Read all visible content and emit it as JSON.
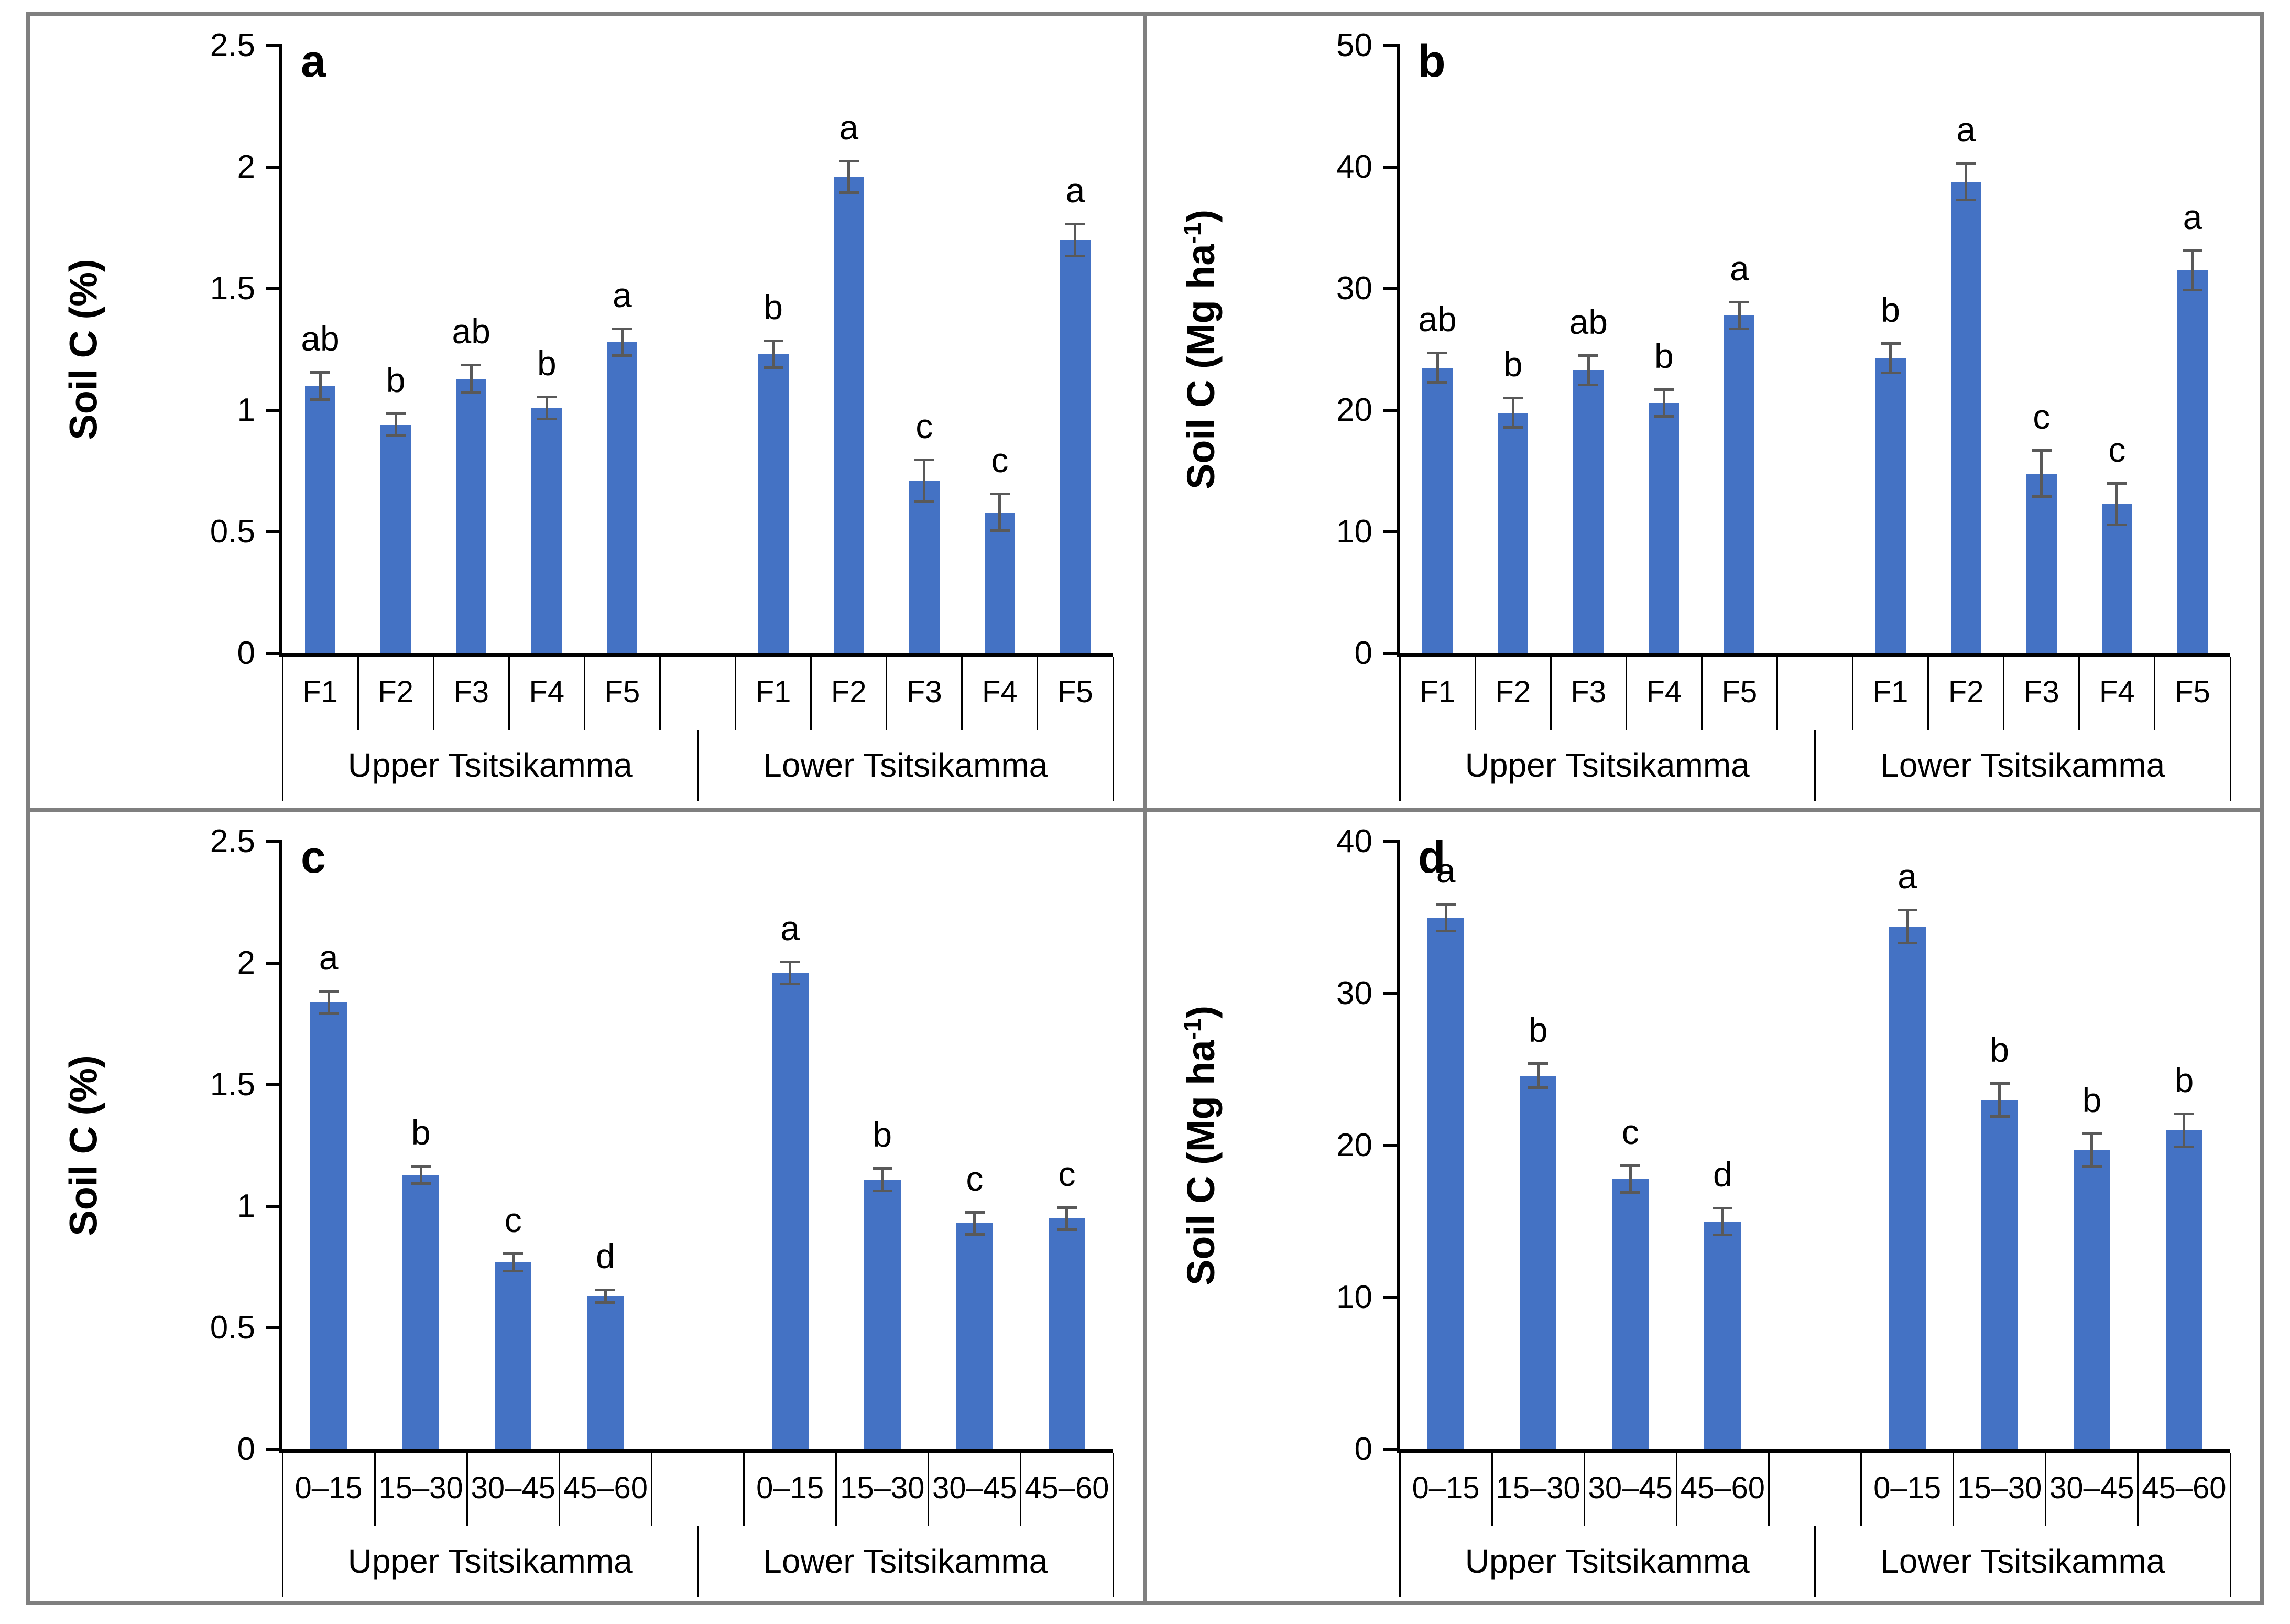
{
  "style": {
    "bar_color": "#4472C4",
    "error_bar_color": "#595959",
    "axis_color": "#000000",
    "table_line_color": "#000000",
    "frame_color": "#7f7f7f",
    "background": "#ffffff"
  },
  "chart_data": [
    {
      "id": "a",
      "type": "bar",
      "panel_letter": "a",
      "ylabel_pre": "Soil C (%)",
      "ylabel_sup": "",
      "ylabel_post": "",
      "ylim": [
        0,
        2.5
      ],
      "yticks": [
        0,
        0.5,
        1,
        1.5,
        2,
        2.5
      ],
      "ytick_labels": [
        "0",
        "0.5",
        "1",
        "1.5",
        "2",
        "2.5"
      ],
      "grid": false,
      "legend": "none",
      "groups": [
        {
          "label": "Upper Tsitsikamma",
          "categories": [
            "F1",
            "F2",
            "F3",
            "F4",
            "F5"
          ],
          "values": [
            1.1,
            0.94,
            1.13,
            1.01,
            1.28
          ],
          "errors": [
            0.05,
            0.04,
            0.05,
            0.04,
            0.05
          ],
          "sig_letters": [
            "ab",
            "b",
            "ab",
            "b",
            "a"
          ]
        },
        {
          "label": "Lower Tsitsikamma",
          "categories": [
            "F1",
            "F2",
            "F3",
            "F4",
            "F5"
          ],
          "values": [
            1.23,
            1.96,
            0.71,
            0.58,
            1.7
          ],
          "errors": [
            0.05,
            0.06,
            0.08,
            0.07,
            0.06
          ],
          "sig_letters": [
            "b",
            "a",
            "c",
            "c",
            "a"
          ]
        }
      ]
    },
    {
      "id": "b",
      "type": "bar",
      "panel_letter": "b",
      "ylabel_pre": "Soil C (Mg ha",
      "ylabel_sup": "-1",
      "ylabel_post": ")",
      "ylim": [
        0,
        50
      ],
      "yticks": [
        0,
        10,
        20,
        30,
        40,
        50
      ],
      "ytick_labels": [
        "0",
        "10",
        "20",
        "30",
        "40",
        "50"
      ],
      "grid": false,
      "legend": "none",
      "groups": [
        {
          "label": "Upper Tsitsikamma",
          "categories": [
            "F1",
            "F2",
            "F3",
            "F4",
            "F5"
          ],
          "values": [
            23.5,
            19.8,
            23.3,
            20.6,
            27.8
          ],
          "errors": [
            1.1,
            1.1,
            1.1,
            1.0,
            1.0
          ],
          "sig_letters": [
            "ab",
            "b",
            "ab",
            "b",
            "a"
          ]
        },
        {
          "label": "Lower Tsitsikamma",
          "categories": [
            "F1",
            "F2",
            "F3",
            "F4",
            "F5"
          ],
          "values": [
            24.3,
            38.8,
            14.8,
            12.3,
            31.5
          ],
          "errors": [
            1.1,
            1.4,
            1.8,
            1.6,
            1.5
          ],
          "sig_letters": [
            "b",
            "a",
            "c",
            "c",
            "a"
          ]
        }
      ]
    },
    {
      "id": "c",
      "type": "bar",
      "panel_letter": "c",
      "ylabel_pre": "Soil C (%)",
      "ylabel_sup": "",
      "ylabel_post": "",
      "ylim": [
        0,
        2.5
      ],
      "yticks": [
        0,
        0.5,
        1,
        1.5,
        2,
        2.5
      ],
      "ytick_labels": [
        "0",
        "0.5",
        "1",
        "1.5",
        "2",
        "2.5"
      ],
      "grid": false,
      "legend": "none",
      "groups": [
        {
          "label": "Upper Tsitsikamma",
          "categories": [
            "0–15",
            "15–30",
            "30–45",
            "45–60"
          ],
          "values": [
            1.84,
            1.13,
            0.77,
            0.63
          ],
          "errors": [
            0.04,
            0.03,
            0.03,
            0.02
          ],
          "sig_letters": [
            "a",
            "b",
            "c",
            "d"
          ]
        },
        {
          "label": "Lower Tsitsikamma",
          "categories": [
            "0–15",
            "15–30",
            "30–45",
            "45–60"
          ],
          "values": [
            1.96,
            1.11,
            0.93,
            0.95
          ],
          "errors": [
            0.04,
            0.04,
            0.04,
            0.04
          ],
          "sig_letters": [
            "a",
            "b",
            "c",
            "c"
          ]
        }
      ]
    },
    {
      "id": "d",
      "type": "bar",
      "panel_letter": "d",
      "ylabel_pre": "Soil C (Mg ha",
      "ylabel_sup": "-1",
      "ylabel_post": ")",
      "ylim": [
        0,
        40
      ],
      "yticks": [
        0,
        10,
        20,
        30,
        40
      ],
      "ytick_labels": [
        "0",
        "10",
        "20",
        "30",
        "40"
      ],
      "grid": false,
      "legend": "none",
      "groups": [
        {
          "label": "Upper Tsitsikamma",
          "categories": [
            "0–15",
            "15–30",
            "30–45",
            "45–60"
          ],
          "values": [
            35.0,
            24.6,
            17.8,
            15.0
          ],
          "errors": [
            0.8,
            0.7,
            0.8,
            0.8
          ],
          "sig_letters": [
            "a",
            "b",
            "c",
            "d"
          ]
        },
        {
          "label": "Lower Tsitsikamma",
          "categories": [
            "0–15",
            "15–30",
            "30–45",
            "45–60"
          ],
          "values": [
            34.4,
            23.0,
            19.7,
            21.0
          ],
          "errors": [
            1.0,
            1.0,
            1.0,
            1.0
          ],
          "sig_letters": [
            "a",
            "b",
            "b",
            "b"
          ]
        }
      ]
    }
  ]
}
